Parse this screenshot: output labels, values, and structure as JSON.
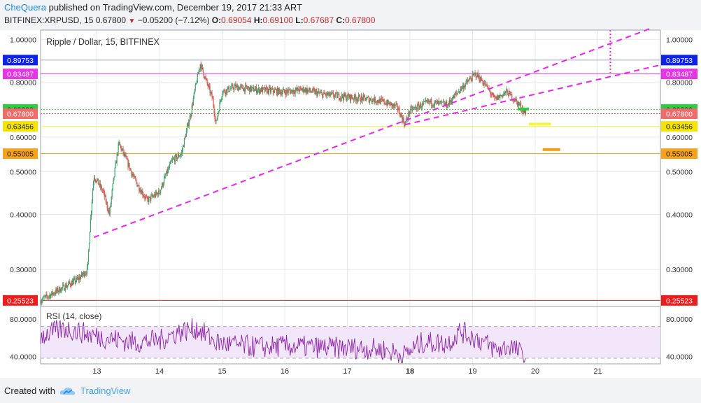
{
  "header": {
    "author": "CheQuera",
    "published_text": "published on TradingView.com, December 19, 2017 21:33 ART",
    "symbol_line": "BITFINEX:XRPUSD, 15",
    "last": "0.67800",
    "change": "−0.05200 (−7.12%)",
    "o_label": "O:",
    "o": "0.69054",
    "h_label": "H:",
    "h": "0.69100",
    "l_label": "L:",
    "l": "0.67687",
    "c_label": "C:",
    "c": "0.67800"
  },
  "footer": {
    "created_with": "Created with",
    "brand": "TradingView"
  },
  "colors": {
    "candle_up": "#3fa36b",
    "candle_down": "#e0524c",
    "trend": "#ee22ee",
    "rsi_line": "#8e24aa",
    "rsi_band": "#f2e6fb"
  },
  "chart_data": [
    {
      "type": "candlestick",
      "title": "Ripple / Dollar, 15, BITFINEX",
      "y_ticks": [
        "1.00000",
        "0.80000",
        "0.60000",
        "0.50000",
        "0.40000",
        "0.30000"
      ],
      "y_tick_values": [
        1.0,
        0.8,
        0.6,
        0.5,
        0.4,
        0.3
      ],
      "ylim": [
        0.25,
        1.05
      ],
      "log_scale": true,
      "x_ticks": [
        "13",
        "14",
        "15",
        "16",
        "17",
        "18",
        "19",
        "20",
        "21"
      ],
      "x_bold": "18",
      "xlim_days": [
        12.1,
        22.0
      ],
      "price_path": [
        {
          "day": 12.1,
          "price": 0.2552
        },
        {
          "day": 12.4,
          "price": 0.27
        },
        {
          "day": 12.7,
          "price": 0.285
        },
        {
          "day": 12.85,
          "price": 0.3
        },
        {
          "day": 12.95,
          "price": 0.49
        },
        {
          "day": 13.1,
          "price": 0.45
        },
        {
          "day": 13.2,
          "price": 0.4
        },
        {
          "day": 13.35,
          "price": 0.58
        },
        {
          "day": 13.5,
          "price": 0.52
        },
        {
          "day": 13.6,
          "price": 0.48
        },
        {
          "day": 13.8,
          "price": 0.43
        },
        {
          "day": 14.0,
          "price": 0.45
        },
        {
          "day": 14.2,
          "price": 0.53
        },
        {
          "day": 14.35,
          "price": 0.55
        },
        {
          "day": 14.5,
          "price": 0.68
        },
        {
          "day": 14.65,
          "price": 0.88
        },
        {
          "day": 14.75,
          "price": 0.8
        },
        {
          "day": 14.85,
          "price": 0.73
        },
        {
          "day": 14.9,
          "price": 0.64
        },
        {
          "day": 15.0,
          "price": 0.76
        },
        {
          "day": 15.2,
          "price": 0.78
        },
        {
          "day": 15.5,
          "price": 0.77
        },
        {
          "day": 16.0,
          "price": 0.76
        },
        {
          "day": 16.3,
          "price": 0.77
        },
        {
          "day": 16.6,
          "price": 0.75
        },
        {
          "day": 17.0,
          "price": 0.74
        },
        {
          "day": 17.4,
          "price": 0.73
        },
        {
          "day": 17.6,
          "price": 0.72
        },
        {
          "day": 17.8,
          "price": 0.7
        },
        {
          "day": 17.92,
          "price": 0.64
        },
        {
          "day": 18.0,
          "price": 0.69
        },
        {
          "day": 18.3,
          "price": 0.72
        },
        {
          "day": 18.6,
          "price": 0.71
        },
        {
          "day": 18.8,
          "price": 0.77
        },
        {
          "day": 19.05,
          "price": 0.835
        },
        {
          "day": 19.2,
          "price": 0.79
        },
        {
          "day": 19.35,
          "price": 0.73
        },
        {
          "day": 19.55,
          "price": 0.76
        },
        {
          "day": 19.75,
          "price": 0.71
        },
        {
          "day": 19.85,
          "price": 0.678
        }
      ],
      "horizontal_levels": [
        {
          "label": "0.89753",
          "value": 0.89753,
          "color": "#9fa8da",
          "tag_color": "#0d24e6"
        },
        {
          "label": "0.83487",
          "value": 0.83487,
          "color": "#e040fb",
          "tag_color": "#e535e5"
        },
        {
          "label": "0.69332",
          "value": 0.69332,
          "color": "#3ecf3e",
          "tag_color": "#2ecc40",
          "dashed": true
        },
        {
          "label": "0.67800",
          "value": 0.678,
          "color": "#d9534f",
          "tag_color": "#f26b6b",
          "dashed": true
        },
        {
          "label": "0.63456",
          "value": 0.63456,
          "color": "#f5f542",
          "tag_color": "#f5e400"
        },
        {
          "label": "0.55005",
          "value": 0.55005,
          "color": "#f39c12",
          "tag_color": "#f7a21b"
        },
        {
          "label": "0.25523",
          "value": 0.25523,
          "color": "#d32f2f",
          "tag_color": "#ee1c1c"
        }
      ],
      "trend_lines": [
        {
          "from": {
            "day": 12.95,
            "price": 0.355
          },
          "to": {
            "day": 21.85,
            "price": 1.06
          }
        },
        {
          "from": {
            "day": 17.92,
            "price": 0.64
          },
          "to": {
            "day": 22.0,
            "price": 0.875
          }
        }
      ],
      "vertical_marker": {
        "day": 21.2,
        "price_from": 1.05,
        "price_to": 0.84
      },
      "target_marks": [
        {
          "day_from": 19.72,
          "day_to": 19.9,
          "price": 0.695,
          "color": "#2ecc40"
        },
        {
          "day_from": 19.9,
          "day_to": 20.25,
          "price": 0.642,
          "color": "#f5f542"
        },
        {
          "day_from": 20.12,
          "day_to": 20.4,
          "price": 0.562,
          "color": "#f39c12"
        }
      ]
    },
    {
      "type": "line",
      "title": "RSI (14, close)",
      "y_ticks": [
        "80.0000",
        "40.0000"
      ],
      "y_tick_values": [
        80,
        40
      ],
      "ylim": [
        32,
        92
      ],
      "band": [
        38,
        72
      ],
      "rsi_path": [
        {
          "day": 12.1,
          "rsi": 62
        },
        {
          "day": 12.5,
          "rsi": 70
        },
        {
          "day": 12.9,
          "rsi": 63
        },
        {
          "day": 13.3,
          "rsi": 58
        },
        {
          "day": 13.6,
          "rsi": 55
        },
        {
          "day": 14.0,
          "rsi": 57
        },
        {
          "day": 14.3,
          "rsi": 66
        },
        {
          "day": 14.6,
          "rsi": 70
        },
        {
          "day": 14.9,
          "rsi": 55
        },
        {
          "day": 15.2,
          "rsi": 52
        },
        {
          "day": 15.6,
          "rsi": 50
        },
        {
          "day": 16.0,
          "rsi": 51
        },
        {
          "day": 16.4,
          "rsi": 50
        },
        {
          "day": 16.8,
          "rsi": 49
        },
        {
          "day": 17.2,
          "rsi": 49
        },
        {
          "day": 17.6,
          "rsi": 47
        },
        {
          "day": 17.9,
          "rsi": 41
        },
        {
          "day": 18.2,
          "rsi": 55
        },
        {
          "day": 18.6,
          "rsi": 54
        },
        {
          "day": 18.8,
          "rsi": 67
        },
        {
          "day": 19.1,
          "rsi": 58
        },
        {
          "day": 19.4,
          "rsi": 46
        },
        {
          "day": 19.6,
          "rsi": 52
        },
        {
          "day": 19.85,
          "rsi": 38
        }
      ]
    }
  ]
}
